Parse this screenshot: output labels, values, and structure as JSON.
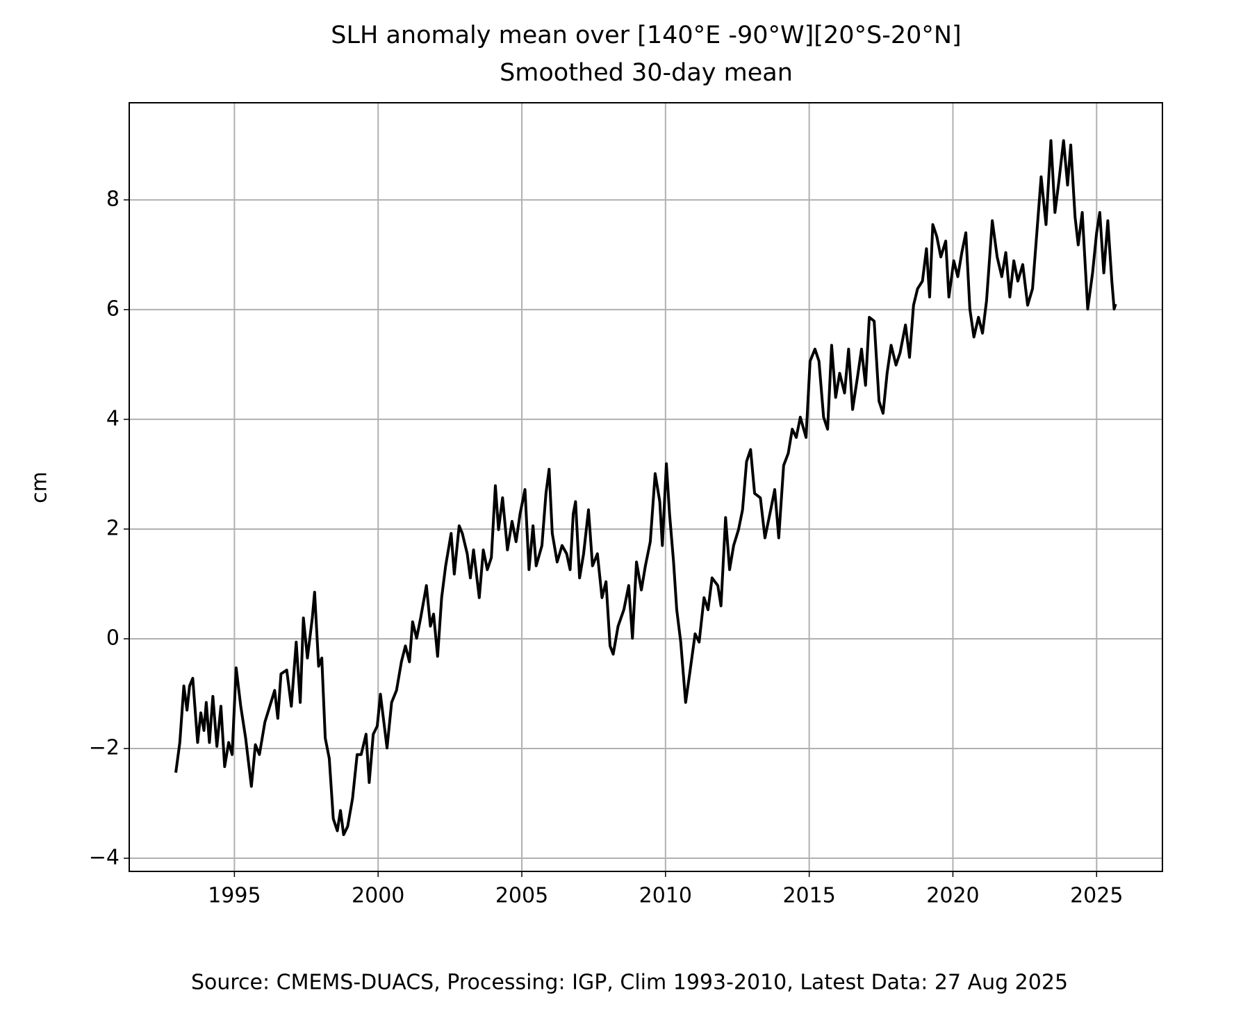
{
  "chart_data": {
    "type": "line",
    "title": "SLH anomaly mean over [140°E -90°W][20°S-20°N]",
    "subtitle": "Smoothed 30-day mean",
    "ylabel": "cm",
    "source": "Source: CMEMS-DUACS, Processing: IGP, Clim 1993-2010, Latest Data: 27 Aug 2025",
    "color": "#000000",
    "grid": true,
    "xlim": [
      1991.34,
      2027.29
    ],
    "ylim": [
      -4.24,
      9.77
    ],
    "xticks": [
      1995,
      2000,
      2005,
      2010,
      2015,
      2020,
      2025
    ],
    "yticks": [
      -4,
      -2,
      0,
      2,
      4,
      6,
      8
    ],
    "x": [
      1992.96,
      1993.1,
      1993.24,
      1993.35,
      1993.44,
      1993.55,
      1993.72,
      1993.83,
      1993.94,
      1994.02,
      1994.13,
      1994.25,
      1994.39,
      1994.53,
      1994.66,
      1994.8,
      1994.92,
      1995.06,
      1995.22,
      1995.39,
      1995.59,
      1995.73,
      1995.87,
      1996.06,
      1996.23,
      1996.4,
      1996.51,
      1996.62,
      1996.82,
      1996.98,
      1997.15,
      1997.29,
      1997.4,
      1997.54,
      1997.71,
      1997.79,
      1997.93,
      1998.04,
      1998.16,
      1998.3,
      1998.44,
      1998.58,
      1998.69,
      1998.8,
      1998.94,
      1999.11,
      1999.27,
      1999.41,
      1999.58,
      1999.69,
      1999.83,
      1999.97,
      2000.08,
      2000.31,
      2000.47,
      2000.64,
      2000.81,
      2000.95,
      2001.09,
      2001.2,
      2001.34,
      2001.48,
      2001.68,
      2001.82,
      2001.93,
      2002.07,
      2002.21,
      2002.35,
      2002.54,
      2002.65,
      2002.82,
      2002.93,
      2003.1,
      2003.21,
      2003.32,
      2003.52,
      2003.66,
      2003.8,
      2003.94,
      2004.08,
      2004.19,
      2004.33,
      2004.5,
      2004.66,
      2004.8,
      2004.94,
      2005.11,
      2005.25,
      2005.39,
      2005.5,
      2005.7,
      2005.84,
      2005.95,
      2006.06,
      2006.23,
      2006.4,
      2006.56,
      2006.68,
      2006.79,
      2006.87,
      2007.01,
      2007.15,
      2007.32,
      2007.46,
      2007.63,
      2007.79,
      2007.93,
      2008.07,
      2008.18,
      2008.35,
      2008.55,
      2008.72,
      2008.85,
      2008.99,
      2009.16,
      2009.3,
      2009.47,
      2009.64,
      2009.8,
      2009.89,
      2010.03,
      2010.14,
      2010.28,
      2010.39,
      2010.53,
      2010.7,
      2010.84,
      2011.03,
      2011.17,
      2011.34,
      2011.48,
      2011.62,
      2011.82,
      2011.93,
      2012.09,
      2012.23,
      2012.37,
      2012.54,
      2012.68,
      2012.82,
      2012.96,
      2013.1,
      2013.3,
      2013.46,
      2013.66,
      2013.8,
      2013.94,
      2014.11,
      2014.27,
      2014.41,
      2014.55,
      2014.69,
      2014.89,
      2015.03,
      2015.2,
      2015.34,
      2015.5,
      2015.64,
      2015.78,
      2015.92,
      2016.06,
      2016.23,
      2016.37,
      2016.51,
      2016.68,
      2016.82,
      2016.96,
      2017.09,
      2017.26,
      2017.43,
      2017.57,
      2017.71,
      2017.85,
      2018.02,
      2018.16,
      2018.35,
      2018.49,
      2018.63,
      2018.77,
      2018.94,
      2019.08,
      2019.19,
      2019.3,
      2019.44,
      2019.58,
      2019.75,
      2019.86,
      2020.03,
      2020.17,
      2020.31,
      2020.45,
      2020.59,
      2020.73,
      2020.89,
      2021.03,
      2021.17,
      2021.37,
      2021.54,
      2021.7,
      2021.84,
      2021.98,
      2022.12,
      2022.26,
      2022.43,
      2022.6,
      2022.77,
      2022.91,
      2023.07,
      2023.24,
      2023.41,
      2023.55,
      2023.69,
      2023.85,
      2023.99,
      2024.1,
      2024.25,
      2024.36,
      2024.5,
      2024.69,
      2024.86,
      2025.0,
      2025.11,
      2025.25,
      2025.39,
      2025.53,
      2025.61,
      2025.66
    ],
    "values": [
      -2.44,
      -1.89,
      -0.86,
      -1.3,
      -0.86,
      -0.72,
      -1.89,
      -1.35,
      -1.67,
      -1.16,
      -1.89,
      -1.05,
      -1.96,
      -1.23,
      -2.33,
      -1.89,
      -2.11,
      -0.53,
      -1.23,
      -1.81,
      -2.69,
      -1.93,
      -2.11,
      -1.52,
      -1.23,
      -0.94,
      -1.45,
      -0.64,
      -0.57,
      -1.23,
      -0.06,
      -1.16,
      0.38,
      -0.35,
      0.38,
      0.85,
      -0.5,
      -0.35,
      -1.81,
      -2.18,
      -3.28,
      -3.5,
      -3.13,
      -3.57,
      -3.42,
      -2.91,
      -2.11,
      -2.11,
      -1.74,
      -2.62,
      -1.74,
      -1.59,
      -1.01,
      -1.99,
      -1.16,
      -0.94,
      -0.42,
      -0.13,
      -0.42,
      0.31,
      0.01,
      0.38,
      0.97,
      0.23,
      0.45,
      -0.32,
      0.75,
      1.33,
      1.92,
      1.18,
      2.06,
      1.92,
      1.55,
      1.11,
      1.62,
      0.75,
      1.62,
      1.26,
      1.48,
      2.79,
      1.99,
      2.57,
      1.62,
      2.14,
      1.77,
      2.28,
      2.72,
      1.26,
      2.06,
      1.33,
      1.7,
      2.65,
      3.09,
      1.92,
      1.4,
      1.7,
      1.55,
      1.26,
      2.28,
      2.5,
      1.11,
      1.55,
      2.35,
      1.33,
      1.55,
      0.75,
      1.04,
      -0.13,
      -0.28,
      0.23,
      0.53,
      0.97,
      0.01,
      1.4,
      0.89,
      1.33,
      1.77,
      3.01,
      2.5,
      1.7,
      3.19,
      2.28,
      1.4,
      0.53,
      -0.06,
      -1.16,
      -0.64,
      0.09,
      -0.06,
      0.75,
      0.53,
      1.11,
      0.97,
      0.6,
      2.21,
      1.26,
      1.7,
      1.99,
      2.35,
      3.23,
      3.45,
      2.65,
      2.57,
      1.84,
      2.35,
      2.72,
      1.84,
      3.16,
      3.38,
      3.82,
      3.67,
      4.04,
      3.67,
      5.06,
      5.28,
      5.06,
      4.04,
      3.82,
      5.35,
      4.4,
      4.84,
      4.48,
      5.28,
      4.18,
      4.77,
      5.28,
      4.62,
      5.86,
      5.79,
      4.33,
      4.11,
      4.84,
      5.35,
      4.99,
      5.21,
      5.72,
      5.13,
      6.08,
      6.38,
      6.52,
      7.11,
      6.23,
      7.55,
      7.33,
      6.96,
      7.25,
      6.23,
      6.89,
      6.6,
      7.04,
      7.4,
      6.01,
      5.5,
      5.86,
      5.57,
      6.16,
      7.62,
      6.96,
      6.6,
      7.04,
      6.23,
      6.89,
      6.52,
      6.82,
      6.08,
      6.38,
      7.33,
      8.42,
      7.55,
      9.08,
      7.77,
      8.35,
      9.08,
      8.27,
      9.0,
      7.69,
      7.18,
      7.77,
      6.01,
      6.67,
      7.4,
      7.77,
      6.67,
      7.62,
      6.52,
      6.01,
      6.1
    ]
  }
}
